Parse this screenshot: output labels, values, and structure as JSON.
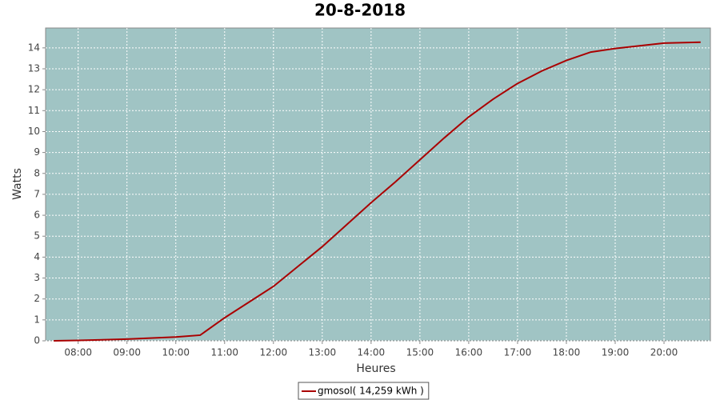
{
  "chart_data": {
    "type": "line",
    "title": "20-8-2018",
    "x_label": "Heures",
    "y_label": "Watts",
    "x": [
      "07:30",
      "08:00",
      "09:00",
      "10:00",
      "10:30",
      "11:00",
      "11:30",
      "12:00",
      "12:30",
      "13:00",
      "13:30",
      "14:00",
      "14:30",
      "15:00",
      "15:30",
      "16:00",
      "16:30",
      "17:00",
      "17:30",
      "18:00",
      "18:30",
      "19:00",
      "19:30",
      "20:00",
      "20:45"
    ],
    "series": [
      {
        "name": "gmosol( 14,259 kWh )",
        "color": "#aa0000",
        "values": [
          0,
          0.02,
          0.08,
          0.18,
          0.27,
          1.1,
          1.85,
          2.6,
          3.55,
          4.5,
          5.55,
          6.6,
          7.6,
          8.65,
          9.7,
          10.7,
          11.55,
          12.3,
          12.9,
          13.4,
          13.8,
          13.97,
          14.1,
          14.23,
          14.27
        ]
      }
    ],
    "xlim": [
      "07:20",
      "20:57"
    ],
    "xticks": [
      "08:00",
      "09:00",
      "10:00",
      "11:00",
      "12:00",
      "13:00",
      "14:00",
      "15:00",
      "16:00",
      "17:00",
      "18:00",
      "19:00",
      "20:00"
    ],
    "ylim": [
      0,
      14.95
    ],
    "yticks": [
      0,
      1,
      2,
      3,
      4,
      5,
      6,
      7,
      8,
      9,
      10,
      11,
      12,
      13,
      14
    ],
    "grid": true,
    "plot_background": "#a0c4c4",
    "legend": "bottom"
  }
}
